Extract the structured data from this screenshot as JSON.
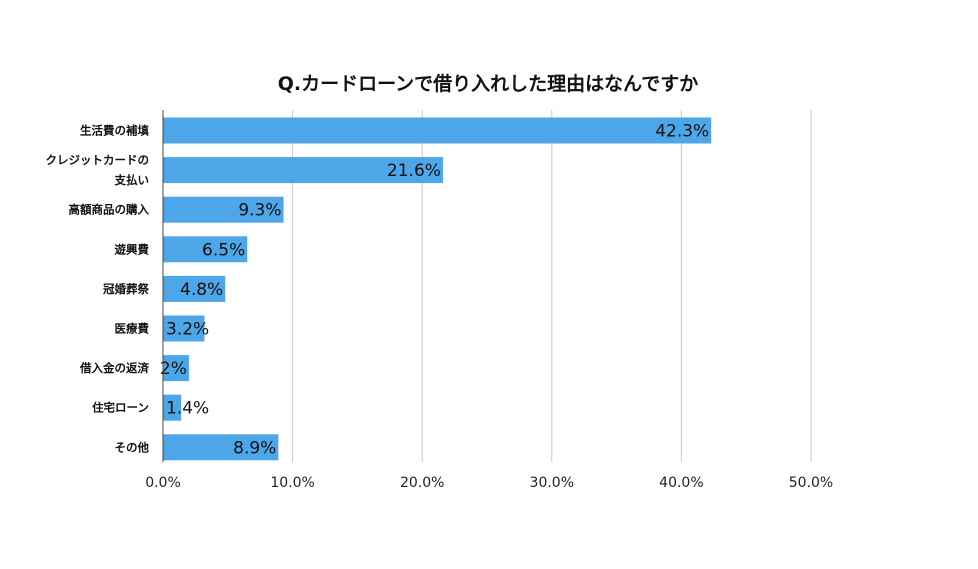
{
  "chart_data": {
    "type": "bar",
    "orientation": "horizontal",
    "title": "Q.カードローンで借り入れした理由はなんですか",
    "categories": [
      "生活費の補填",
      "クレジットカードの\n支払い",
      "高額商品の購入",
      "遊興費",
      "冠婚葬祭",
      "医療費",
      "借入金の返済",
      "住宅ローン",
      "その他"
    ],
    "values": [
      42.3,
      21.6,
      9.3,
      6.5,
      4.8,
      3.2,
      2,
      1.4,
      8.9
    ],
    "data_labels": [
      "42.3%",
      "21.6%",
      "9.3%",
      "6.5%",
      "4.8%",
      "3.2%",
      "2%",
      "1.4%",
      "8.9%"
    ],
    "xlim": [
      0,
      50
    ],
    "xticks": [
      0,
      10,
      20,
      30,
      40,
      50
    ],
    "xtick_labels": [
      "0.0%",
      "10.0%",
      "20.0%",
      "30.0%",
      "40.0%",
      "50.0%"
    ],
    "xlabel": "",
    "ylabel": "",
    "grid": true,
    "legend": "none",
    "bar_color": "#4da6e8"
  }
}
